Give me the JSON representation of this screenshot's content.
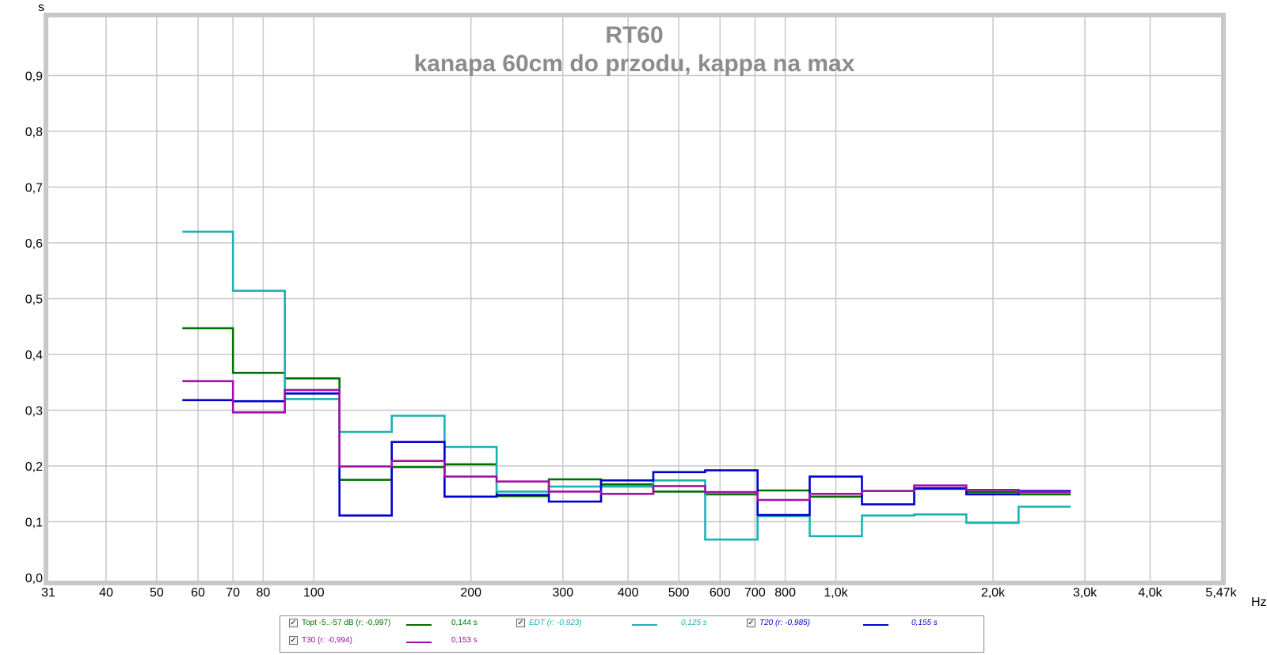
{
  "chart_data": {
    "type": "line",
    "subtype": "step",
    "title": "RT60",
    "subtitle": "kanapa 60cm do przodu, kappa na max",
    "xlabel": "Hz",
    "ylabel": "s",
    "x_scale": "log",
    "xlim": [
      31,
      5470
    ],
    "ylim": [
      0.0,
      1.0
    ],
    "x_ticks": [
      {
        "value": 31,
        "label": "31"
      },
      {
        "value": 40,
        "label": "40"
      },
      {
        "value": 50,
        "label": "50"
      },
      {
        "value": 60,
        "label": "60"
      },
      {
        "value": 70,
        "label": "70"
      },
      {
        "value": 80,
        "label": "80"
      },
      {
        "value": 100,
        "label": "100"
      },
      {
        "value": 200,
        "label": "200"
      },
      {
        "value": 300,
        "label": "300"
      },
      {
        "value": 400,
        "label": "400"
      },
      {
        "value": 500,
        "label": "500"
      },
      {
        "value": 600,
        "label": "600"
      },
      {
        "value": 700,
        "label": "700"
      },
      {
        "value": 800,
        "label": "800"
      },
      {
        "value": 1000,
        "label": "1,0k"
      },
      {
        "value": 2000,
        "label": "2,0k"
      },
      {
        "value": 3000,
        "label": "3,0k"
      },
      {
        "value": 4000,
        "label": "4,0k"
      },
      {
        "value": 5470,
        "label": "5,47k"
      }
    ],
    "y_ticks": [
      {
        "value": 0.0,
        "label": "0,0"
      },
      {
        "value": 0.1,
        "label": "0,1"
      },
      {
        "value": 0.2,
        "label": "0,2"
      },
      {
        "value": 0.3,
        "label": "0,3"
      },
      {
        "value": 0.4,
        "label": "0,4"
      },
      {
        "value": 0.5,
        "label": "0,5"
      },
      {
        "value": 0.6,
        "label": "0,6"
      },
      {
        "value": 0.7,
        "label": "0,7"
      },
      {
        "value": 0.8,
        "label": "0,8"
      },
      {
        "value": 0.9,
        "label": "0,9"
      }
    ],
    "grid": true,
    "band_edges": [
      56,
      70,
      88,
      112,
      141,
      178,
      224,
      282,
      355,
      447,
      562,
      708,
      891,
      1122,
      1413,
      1778,
      2239,
      2818
    ],
    "series": [
      {
        "name": "Topt -5..-57 dB (r: -0,997)",
        "value_label": "0,144 s",
        "color": "#007000",
        "italic": false,
        "values": [
          0.447,
          0.367,
          0.357,
          0.175,
          0.198,
          0.203,
          0.146,
          0.176,
          0.167,
          0.154,
          0.149,
          0.156,
          0.145,
          0.155,
          0.159,
          0.153,
          0.149
        ]
      },
      {
        "name": "EDT (r: -0,923)",
        "value_label": "0,125 s",
        "color": "#1ab2b2",
        "italic": true,
        "values": [
          0.62,
          0.514,
          0.32,
          0.261,
          0.29,
          0.234,
          0.154,
          0.163,
          0.163,
          0.174,
          0.068,
          0.11,
          0.074,
          0.111,
          0.113,
          0.098,
          0.127
        ]
      },
      {
        "name": "T20 (r: -0,985)",
        "value_label": "0,155 s",
        "color": "#0000cc",
        "italic": true,
        "values": [
          0.318,
          0.316,
          0.33,
          0.111,
          0.243,
          0.145,
          0.148,
          0.136,
          0.174,
          0.189,
          0.192,
          0.112,
          0.181,
          0.131,
          0.16,
          0.149,
          0.155
        ]
      },
      {
        "name": "T30 (r: -0,994)",
        "value_label": "0,153 s",
        "color": "#a010a8",
        "italic": false,
        "values": [
          0.352,
          0.296,
          0.336,
          0.199,
          0.209,
          0.181,
          0.172,
          0.154,
          0.15,
          0.164,
          0.153,
          0.139,
          0.15,
          0.155,
          0.165,
          0.157,
          0.153
        ]
      }
    ]
  }
}
